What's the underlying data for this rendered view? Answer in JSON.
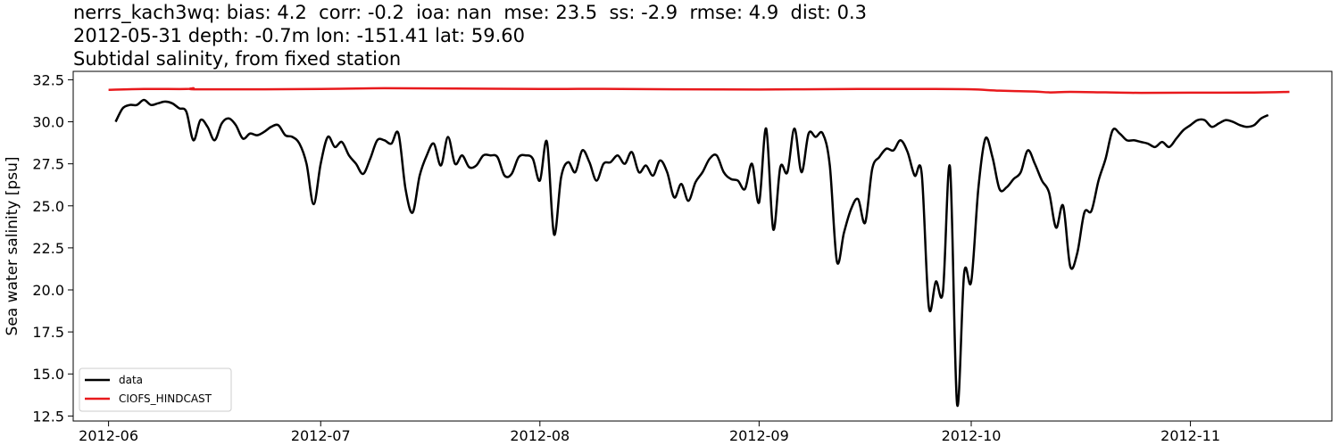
{
  "chart_data": {
    "type": "line",
    "title_lines": [
      "nerrs_kach3wq: bias: 4.2  corr: -0.2  ioa: nan  mse: 23.5  ss: -2.9  rmse: 4.9  dist: 0.3",
      "2012-05-31 depth: -0.7m lon: -151.41 lat: 59.60",
      "Subtidal salinity, from fixed station"
    ],
    "xlabel": "",
    "ylabel": "Sea water salinity [psu]",
    "x_axis_type": "date",
    "xlim": [
      "2012-05-27",
      "2012-11-21"
    ],
    "ylim": [
      12.2,
      33.0
    ],
    "x_ticks": [
      "2012-06-01",
      "2012-07-01",
      "2012-08-01",
      "2012-09-01",
      "2012-10-01",
      "2012-11-01"
    ],
    "x_tick_labels": [
      "2012-06",
      "2012-07",
      "2012-08",
      "2012-09",
      "2012-10",
      "2012-11"
    ],
    "y_ticks": [
      12.5,
      15.0,
      17.5,
      20.0,
      22.5,
      25.0,
      27.5,
      30.0,
      32.5
    ],
    "y_tick_labels": [
      "12.5",
      "15.0",
      "17.5",
      "20.0",
      "22.5",
      "25.0",
      "27.5",
      "30.0",
      "32.5"
    ],
    "grid": false,
    "legend_position": "lower-left",
    "series": [
      {
        "name": "data",
        "color": "#000000",
        "points": [
          [
            "2012-06-02",
            30.0
          ],
          [
            "2012-06-03",
            30.8
          ],
          [
            "2012-06-04",
            31.0
          ],
          [
            "2012-06-05",
            31.0
          ],
          [
            "2012-06-06",
            31.3
          ],
          [
            "2012-06-07",
            31.0
          ],
          [
            "2012-06-08",
            31.1
          ],
          [
            "2012-06-09",
            31.2
          ],
          [
            "2012-06-10",
            31.1
          ],
          [
            "2012-06-11",
            30.8
          ],
          [
            "2012-06-12",
            30.6
          ],
          [
            "2012-06-13",
            28.9
          ],
          [
            "2012-06-14",
            30.1
          ],
          [
            "2012-06-15",
            29.7
          ],
          [
            "2012-06-16",
            28.9
          ],
          [
            "2012-06-17",
            29.9
          ],
          [
            "2012-06-18",
            30.2
          ],
          [
            "2012-06-19",
            29.8
          ],
          [
            "2012-06-20",
            29.0
          ],
          [
            "2012-06-21",
            29.3
          ],
          [
            "2012-06-22",
            29.2
          ],
          [
            "2012-06-23",
            29.4
          ],
          [
            "2012-06-24",
            29.7
          ],
          [
            "2012-06-25",
            29.8
          ],
          [
            "2012-06-26",
            29.2
          ],
          [
            "2012-06-27",
            29.1
          ],
          [
            "2012-06-28",
            28.7
          ],
          [
            "2012-06-29",
            27.5
          ],
          [
            "2012-06-30",
            25.1
          ],
          [
            "2012-07-01",
            27.5
          ],
          [
            "2012-07-02",
            29.1
          ],
          [
            "2012-07-03",
            28.5
          ],
          [
            "2012-07-04",
            28.8
          ],
          [
            "2012-07-05",
            28.0
          ],
          [
            "2012-07-06",
            27.5
          ],
          [
            "2012-07-07",
            26.9
          ],
          [
            "2012-07-08",
            27.8
          ],
          [
            "2012-07-09",
            28.9
          ],
          [
            "2012-07-10",
            28.9
          ],
          [
            "2012-07-11",
            28.7
          ],
          [
            "2012-07-12",
            29.3
          ],
          [
            "2012-07-13",
            26.0
          ],
          [
            "2012-07-14",
            24.6
          ],
          [
            "2012-07-15",
            26.8
          ],
          [
            "2012-07-16",
            28.0
          ],
          [
            "2012-07-17",
            28.7
          ],
          [
            "2012-07-18",
            27.4
          ],
          [
            "2012-07-19",
            29.1
          ],
          [
            "2012-07-20",
            27.5
          ],
          [
            "2012-07-21",
            28.0
          ],
          [
            "2012-07-22",
            27.3
          ],
          [
            "2012-07-23",
            27.4
          ],
          [
            "2012-07-24",
            28.0
          ],
          [
            "2012-07-25",
            28.0
          ],
          [
            "2012-07-26",
            27.9
          ],
          [
            "2012-07-27",
            26.8
          ],
          [
            "2012-07-28",
            26.9
          ],
          [
            "2012-07-29",
            27.9
          ],
          [
            "2012-07-30",
            28.0
          ],
          [
            "2012-07-31",
            27.8
          ],
          [
            "2012-08-01",
            26.5
          ],
          [
            "2012-08-02",
            28.8
          ],
          [
            "2012-08-03",
            23.3
          ],
          [
            "2012-08-04",
            26.7
          ],
          [
            "2012-08-05",
            27.6
          ],
          [
            "2012-08-06",
            27.0
          ],
          [
            "2012-08-07",
            28.3
          ],
          [
            "2012-08-08",
            27.6
          ],
          [
            "2012-08-09",
            26.5
          ],
          [
            "2012-08-10",
            27.5
          ],
          [
            "2012-08-11",
            27.6
          ],
          [
            "2012-08-12",
            28.0
          ],
          [
            "2012-08-13",
            27.5
          ],
          [
            "2012-08-14",
            28.2
          ],
          [
            "2012-08-15",
            27.0
          ],
          [
            "2012-08-16",
            27.4
          ],
          [
            "2012-08-17",
            26.8
          ],
          [
            "2012-08-18",
            27.7
          ],
          [
            "2012-08-19",
            27.0
          ],
          [
            "2012-08-20",
            25.5
          ],
          [
            "2012-08-21",
            26.3
          ],
          [
            "2012-08-22",
            25.3
          ],
          [
            "2012-08-23",
            26.4
          ],
          [
            "2012-08-24",
            27.0
          ],
          [
            "2012-08-25",
            27.8
          ],
          [
            "2012-08-26",
            28.0
          ],
          [
            "2012-08-27",
            27.0
          ],
          [
            "2012-08-28",
            26.6
          ],
          [
            "2012-08-29",
            26.5
          ],
          [
            "2012-08-30",
            26.0
          ],
          [
            "2012-08-31",
            27.5
          ],
          [
            "2012-09-01",
            25.2
          ],
          [
            "2012-09-02",
            29.6
          ],
          [
            "2012-09-03",
            23.6
          ],
          [
            "2012-09-04",
            27.3
          ],
          [
            "2012-09-05",
            27.0
          ],
          [
            "2012-09-06",
            29.6
          ],
          [
            "2012-09-07",
            27.0
          ],
          [
            "2012-09-08",
            29.3
          ],
          [
            "2012-09-09",
            29.1
          ],
          [
            "2012-09-10",
            29.3
          ],
          [
            "2012-09-11",
            27.4
          ],
          [
            "2012-09-12",
            21.7
          ],
          [
            "2012-09-13",
            23.4
          ],
          [
            "2012-09-14",
            24.8
          ],
          [
            "2012-09-15",
            25.4
          ],
          [
            "2012-09-16",
            24.0
          ],
          [
            "2012-09-17",
            27.2
          ],
          [
            "2012-09-18",
            27.9
          ],
          [
            "2012-09-19",
            28.4
          ],
          [
            "2012-09-20",
            28.3
          ],
          [
            "2012-09-21",
            28.9
          ],
          [
            "2012-09-22",
            28.2
          ],
          [
            "2012-09-23",
            26.8
          ],
          [
            "2012-09-24",
            26.9
          ],
          [
            "2012-09-25",
            19.0
          ],
          [
            "2012-09-26",
            20.5
          ],
          [
            "2012-09-27",
            19.9
          ],
          [
            "2012-09-28",
            27.3
          ],
          [
            "2012-09-29",
            13.2
          ],
          [
            "2012-09-30",
            21.0
          ],
          [
            "2012-10-01",
            20.5
          ],
          [
            "2012-10-02",
            26.0
          ],
          [
            "2012-10-03",
            29.0
          ],
          [
            "2012-10-04",
            27.9
          ],
          [
            "2012-10-05",
            26.0
          ],
          [
            "2012-10-06",
            26.1
          ],
          [
            "2012-10-07",
            26.6
          ],
          [
            "2012-10-08",
            27.0
          ],
          [
            "2012-10-09",
            28.3
          ],
          [
            "2012-10-10",
            27.5
          ],
          [
            "2012-10-11",
            26.5
          ],
          [
            "2012-10-12",
            25.8
          ],
          [
            "2012-10-13",
            23.7
          ],
          [
            "2012-10-14",
            25.0
          ],
          [
            "2012-10-15",
            21.4
          ],
          [
            "2012-10-16",
            22.2
          ],
          [
            "2012-10-17",
            24.6
          ],
          [
            "2012-10-18",
            24.7
          ],
          [
            "2012-10-19",
            26.5
          ],
          [
            "2012-10-20",
            27.8
          ],
          [
            "2012-10-21",
            29.5
          ],
          [
            "2012-10-22",
            29.3
          ],
          [
            "2012-10-23",
            28.9
          ],
          [
            "2012-10-24",
            28.9
          ],
          [
            "2012-10-25",
            28.8
          ],
          [
            "2012-10-26",
            28.7
          ],
          [
            "2012-10-27",
            28.5
          ],
          [
            "2012-10-28",
            28.8
          ],
          [
            "2012-10-29",
            28.5
          ],
          [
            "2012-10-30",
            29.0
          ],
          [
            "2012-10-31",
            29.5
          ],
          [
            "2012-11-01",
            29.8
          ],
          [
            "2012-11-02",
            30.1
          ],
          [
            "2012-11-03",
            30.1
          ],
          [
            "2012-11-04",
            29.7
          ],
          [
            "2012-11-05",
            29.9
          ],
          [
            "2012-11-06",
            30.1
          ],
          [
            "2012-11-07",
            30.0
          ],
          [
            "2012-11-08",
            29.8
          ],
          [
            "2012-11-09",
            29.7
          ],
          [
            "2012-11-10",
            29.8
          ],
          [
            "2012-11-11",
            30.2
          ],
          [
            "2012-11-12",
            30.4
          ]
        ]
      },
      {
        "name": "CIOFS_HINDCAST",
        "color": "#e8191c",
        "points": [
          [
            "2012-06-01",
            31.9
          ],
          [
            "2012-06-06",
            31.95
          ],
          [
            "2012-06-12",
            31.95
          ],
          [
            "2012-06-13",
            32.0
          ],
          [
            "2012-06-14",
            31.93
          ],
          [
            "2012-07-01",
            31.95
          ],
          [
            "2012-07-10",
            32.0
          ],
          [
            "2012-07-20",
            31.98
          ],
          [
            "2012-08-01",
            31.95
          ],
          [
            "2012-08-10",
            31.96
          ],
          [
            "2012-08-20",
            31.93
          ],
          [
            "2012-09-01",
            31.92
          ],
          [
            "2012-09-15",
            31.95
          ],
          [
            "2012-09-25",
            31.95
          ],
          [
            "2012-10-01",
            31.93
          ],
          [
            "2012-10-05",
            31.85
          ],
          [
            "2012-10-10",
            31.8
          ],
          [
            "2012-10-12",
            31.75
          ],
          [
            "2012-10-15",
            31.78
          ],
          [
            "2012-10-20",
            31.75
          ],
          [
            "2012-10-25",
            31.72
          ],
          [
            "2012-11-01",
            31.73
          ],
          [
            "2012-11-10",
            31.74
          ],
          [
            "2012-11-15",
            31.78
          ]
        ]
      }
    ]
  }
}
